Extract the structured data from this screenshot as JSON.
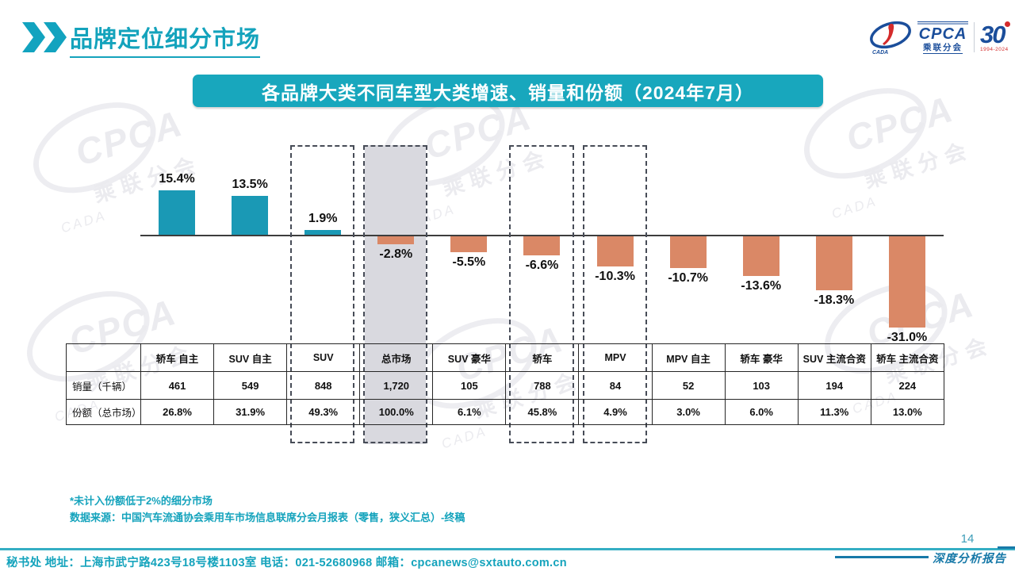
{
  "header": {
    "title": "品牌定位细分市场"
  },
  "logo": {
    "cpca": "CPCA",
    "sub": "乘联分会",
    "cada": "CADA",
    "thirty": "30",
    "years": "1994-2024"
  },
  "banner": {
    "text": "各品牌大类不同车型大类增速、销量和份额（2024年7月）"
  },
  "chart_data": {
    "type": "bar",
    "title": "各品牌大类不同车型大类增速、销量和份额（2024年7月）",
    "categories": [
      "轿车 自主",
      "SUV 自主",
      "SUV",
      "总市场",
      "SUV 豪华",
      "轿车",
      "MPV",
      "MPV 自主",
      "轿车 豪华",
      "SUV 主流合资",
      "轿车 主流合资"
    ],
    "values": [
      15.4,
      13.5,
      1.9,
      -2.8,
      -5.5,
      -6.6,
      -10.3,
      -10.7,
      -13.6,
      -18.3,
      -31.0
    ],
    "value_labels": [
      "15.4%",
      "13.5%",
      "1.9%",
      "-2.8%",
      "-5.5%",
      "-6.6%",
      "-10.3%",
      "-10.7%",
      "-13.6%",
      "-18.3%",
      "-31.0%"
    ],
    "dashed_highlight_indices": [
      2,
      3,
      5,
      6
    ],
    "gray_highlight_indices": [
      3
    ],
    "ylim": [
      -33,
      17
    ],
    "grid": false,
    "legend": false,
    "xlabel": "",
    "ylabel": ""
  },
  "table": {
    "corner": "",
    "columns": [
      "轿车 自主",
      "SUV 自主",
      "SUV",
      "总市场",
      "SUV 豪华",
      "轿车",
      "MPV",
      "MPV 自主",
      "轿车 豪华",
      "SUV 主流合资",
      "轿车 主流合资"
    ],
    "rows": [
      {
        "label": "销量（千辆）",
        "cells": [
          "461",
          "549",
          "848",
          "1,720",
          "105",
          "788",
          "84",
          "52",
          "103",
          "194",
          "224"
        ]
      },
      {
        "label": "份额（总市场）",
        "cells": [
          "26.8%",
          "31.9%",
          "49.3%",
          "100.0%",
          "6.1%",
          "45.8%",
          "4.9%",
          "3.0%",
          "6.0%",
          "11.3%",
          "13.0%"
        ]
      }
    ]
  },
  "footnotes": [
    "*未计入份额低于2%的细分市场",
    "数据来源：中国汽车流通协会乘用车市场信息联席分会月报表（零售，狭义汇总）-终稿"
  ],
  "footer": {
    "contact": "秘书处  地址：上海市武宁路423号18号楼1103室  电话：021-52680968   邮箱：cpcanews@sxtauto.com.cn",
    "page_number": "14",
    "report_label": "深度分析报告"
  },
  "watermark": {
    "line1": "CPCA",
    "line2": "乘联分会",
    "line3": "CADA"
  },
  "colors": {
    "accent": "#14A3BC",
    "banner_bg": "#18A7BD",
    "bar_positive": "#1A99B5",
    "bar_negative": "#DA8866",
    "highlight_gray": "#D9D9DF",
    "dash_border": "#474C57",
    "logo_blue": "#1B4E9B",
    "logo_red": "#D42B2B",
    "footer_line": "#35AEC4",
    "report_teal": "#1779A8"
  }
}
